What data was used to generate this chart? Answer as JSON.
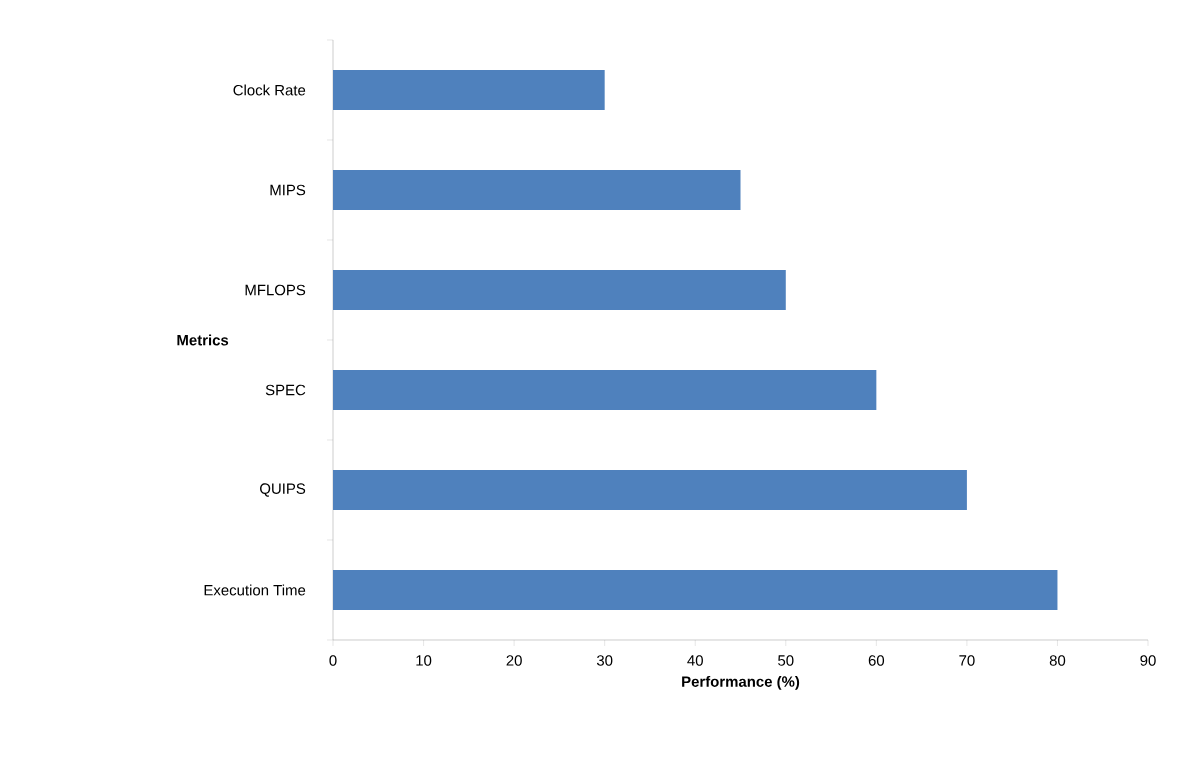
{
  "chart_data": {
    "type": "bar",
    "orientation": "horizontal",
    "categories": [
      "Clock Rate",
      "MIPS",
      "MFLOPS",
      "SPEC",
      "QUIPS",
      "Execution Time"
    ],
    "values": [
      30,
      45,
      50,
      60,
      70,
      80
    ],
    "color": "#4f81bd",
    "xlim": [
      0,
      90
    ],
    "xticks": [
      0,
      10,
      20,
      30,
      40,
      50,
      60,
      70,
      80,
      90
    ],
    "xlabel": "Performance (%)",
    "ylabel": "Metrics"
  }
}
